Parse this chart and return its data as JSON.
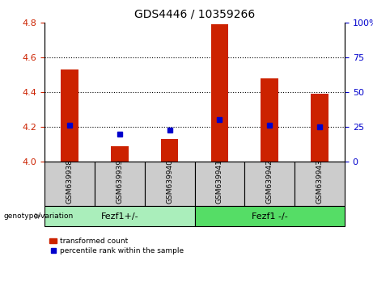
{
  "title": "GDS4446 / 10359266",
  "samples": [
    "GSM639938",
    "GSM639939",
    "GSM639940",
    "GSM639941",
    "GSM639942",
    "GSM639943"
  ],
  "red_bar_values": [
    4.53,
    4.09,
    4.13,
    4.79,
    4.48,
    4.39
  ],
  "blue_dot_values": [
    4.21,
    4.16,
    4.18,
    4.24,
    4.21,
    4.2
  ],
  "ylim_left": [
    4.0,
    4.8
  ],
  "ylim_right": [
    0,
    100
  ],
  "yticks_left": [
    4.0,
    4.2,
    4.4,
    4.6,
    4.8
  ],
  "yticks_right": [
    0,
    25,
    50,
    75,
    100
  ],
  "ytick_labels_right": [
    "0",
    "25",
    "50",
    "75",
    "100%"
  ],
  "grid_lines": [
    4.2,
    4.4,
    4.6
  ],
  "bar_color": "#cc2200",
  "dot_color": "#0000cc",
  "group_label_left_color": "#888888",
  "groups": [
    {
      "label": "Fezf1+/-",
      "start": 0,
      "end": 2,
      "color": "#aaeebb"
    },
    {
      "label": "Fezf1 -/-",
      "start": 3,
      "end": 5,
      "color": "#55dd66"
    }
  ],
  "genotype_label": "genotype/variation",
  "legend_red_label": "transformed count",
  "legend_blue_label": "percentile rank within the sample",
  "bar_width": 0.35,
  "tick_color_left": "#cc2200",
  "tick_color_right": "#0000cc",
  "sample_cell_color": "#cccccc",
  "bar_bottom": 4.0
}
